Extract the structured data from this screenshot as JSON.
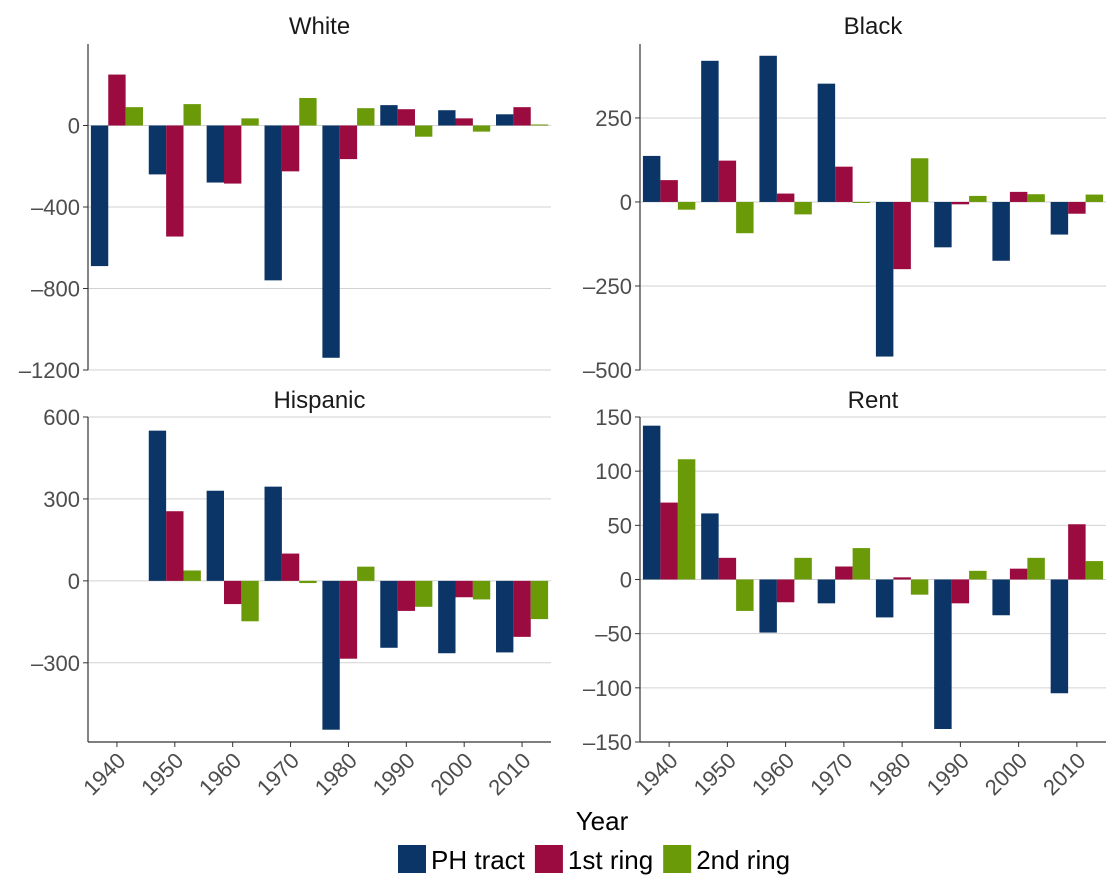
{
  "figure": {
    "xlabel": "Year",
    "legend_position": "bottom"
  },
  "chart_data": [
    {
      "type": "bar",
      "title": "White",
      "categories": [
        "1940",
        "1950",
        "1960",
        "1970",
        "1980",
        "1990",
        "2000",
        "2010"
      ],
      "ylim": [
        -1200,
        400
      ],
      "yticks": [
        "0",
        "–400",
        "–800",
        "–1200"
      ],
      "ytick_values": [
        0,
        -400,
        -800,
        -1200
      ],
      "series": [
        {
          "name": "PH tract",
          "color": "#0b3566",
          "values": [
            -690,
            -240,
            -280,
            -760,
            -1140,
            100,
            75,
            55
          ]
        },
        {
          "name": "1st ring",
          "color": "#9b0b3f",
          "values": [
            250,
            -545,
            -285,
            -225,
            -165,
            80,
            35,
            90
          ]
        },
        {
          "name": "2nd ring",
          "color": "#6a9a08",
          "values": [
            90,
            105,
            35,
            135,
            85,
            -55,
            -30,
            5
          ]
        }
      ]
    },
    {
      "type": "bar",
      "title": "Black",
      "categories": [
        "1940",
        "1950",
        "1960",
        "1970",
        "1980",
        "1990",
        "2000",
        "2010"
      ],
      "ylim": [
        -500,
        470
      ],
      "yticks": [
        "250",
        "0",
        "–250",
        "–500"
      ],
      "ytick_values": [
        250,
        0,
        -250,
        -500
      ],
      "series": [
        {
          "name": "PH tract",
          "color": "#0b3566",
          "values": [
            137,
            420,
            435,
            352,
            -460,
            -135,
            -175,
            -97
          ]
        },
        {
          "name": "1st ring",
          "color": "#9b0b3f",
          "values": [
            65,
            123,
            25,
            105,
            -200,
            -7,
            30,
            -35
          ]
        },
        {
          "name": "2nd ring",
          "color": "#6a9a08",
          "values": [
            -23,
            -93,
            -37,
            -3,
            130,
            18,
            23,
            22
          ]
        }
      ]
    },
    {
      "type": "bar",
      "title": "Hispanic",
      "categories": [
        "1940",
        "1950",
        "1960",
        "1970",
        "1980",
        "1990",
        "2000",
        "2010"
      ],
      "ylim": [
        -590,
        600
      ],
      "yticks": [
        "600",
        "300",
        "0",
        "–300"
      ],
      "ytick_values": [
        600,
        300,
        0,
        -300
      ],
      "series": [
        {
          "name": "PH tract",
          "color": "#0b3566",
          "values": [
            0,
            550,
            330,
            345,
            -545,
            -245,
            -265,
            -262
          ]
        },
        {
          "name": "1st ring",
          "color": "#9b0b3f",
          "values": [
            0,
            255,
            -85,
            100,
            -285,
            -110,
            -60,
            -205
          ]
        },
        {
          "name": "2nd ring",
          "color": "#6a9a08",
          "values": [
            0,
            38,
            -148,
            -8,
            52,
            -95,
            -68,
            -140
          ]
        }
      ]
    },
    {
      "type": "bar",
      "title": "Rent",
      "categories": [
        "1940",
        "1950",
        "1960",
        "1970",
        "1980",
        "1990",
        "2000",
        "2010"
      ],
      "ylim": [
        -150,
        150
      ],
      "yticks": [
        "150",
        "100",
        "50",
        "0",
        "–50",
        "–100",
        "–150"
      ],
      "ytick_values": [
        150,
        100,
        50,
        0,
        -50,
        -100,
        -150
      ],
      "series": [
        {
          "name": "PH tract",
          "color": "#0b3566",
          "values": [
            142,
            61,
            -49,
            -22,
            -35,
            -138,
            -33,
            -105
          ]
        },
        {
          "name": "1st ring",
          "color": "#9b0b3f",
          "values": [
            71,
            20,
            -21,
            12,
            2,
            -22,
            10,
            51
          ]
        },
        {
          "name": "2nd ring",
          "color": "#6a9a08",
          "values": [
            111,
            -29,
            20,
            29,
            -14,
            8,
            20,
            17
          ]
        }
      ]
    }
  ]
}
